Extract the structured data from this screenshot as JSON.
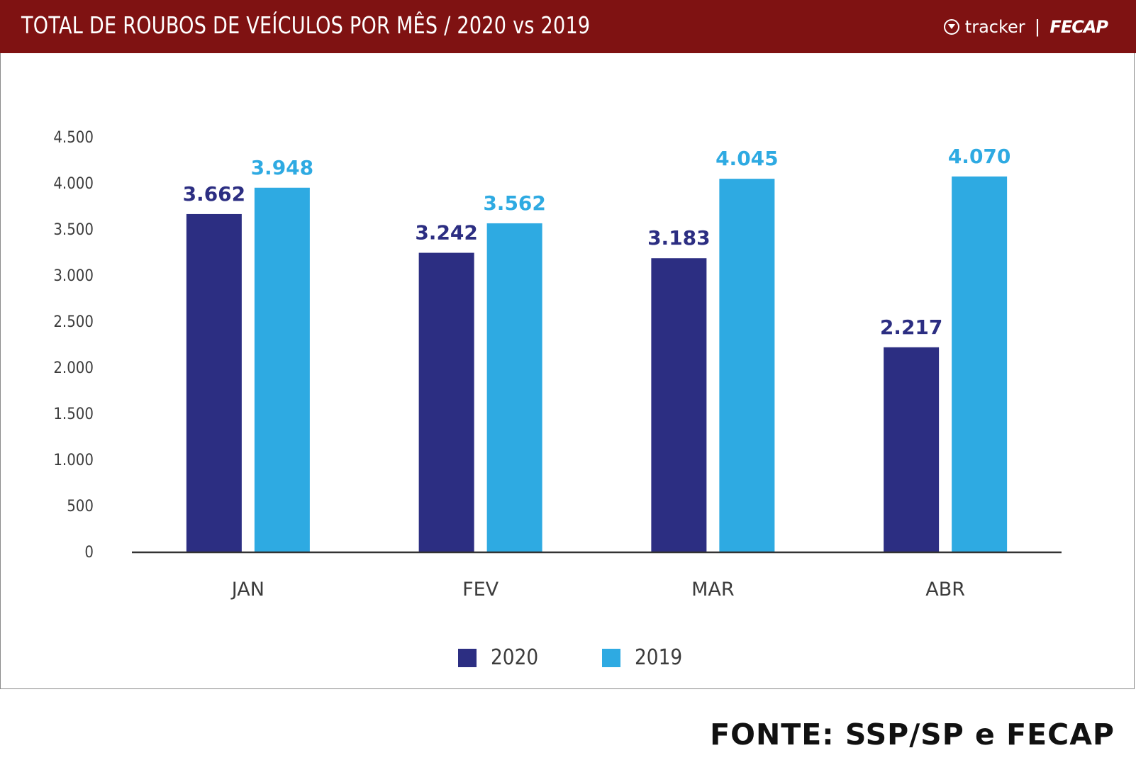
{
  "header": {
    "title": "TOTAL DE ROUBOS DE VEÍCULOS POR MÊS / 2020 vs 2019",
    "brand_tracker": "tracker",
    "brand_separator": "|",
    "brand_fecap": "FECAP"
  },
  "source": "FONTE: SSP/SP e FECAP",
  "colors": {
    "header_bg": "#7f1212",
    "series_2020": "#2c2e82",
    "series_2019": "#2eaae2"
  },
  "chart_data": {
    "type": "bar",
    "title": "TOTAL DE ROUBOS DE VEÍCULOS POR MÊS / 2020 vs 2019",
    "categories": [
      "JAN",
      "FEV",
      "MAR",
      "ABR"
    ],
    "series": [
      {
        "name": "2020",
        "values": [
          3662,
          3242,
          3183,
          2217
        ],
        "labels": [
          "3.662",
          "3.242",
          "3.183",
          "2.217"
        ]
      },
      {
        "name": "2019",
        "values": [
          3948,
          3562,
          4045,
          4070
        ],
        "labels": [
          "3.948",
          "3.562",
          "4.045",
          "4.070"
        ]
      }
    ],
    "yticks": [
      0,
      500,
      1000,
      1500,
      2000,
      2500,
      3000,
      3500,
      4000,
      4500
    ],
    "ytick_labels": [
      "0",
      "500",
      "1.000",
      "1.500",
      "2.000",
      "2.500",
      "3.000",
      "3.500",
      "4.000",
      "4.500"
    ],
    "ylim": [
      0,
      4500
    ],
    "grid": false,
    "legend_position": "bottom"
  }
}
